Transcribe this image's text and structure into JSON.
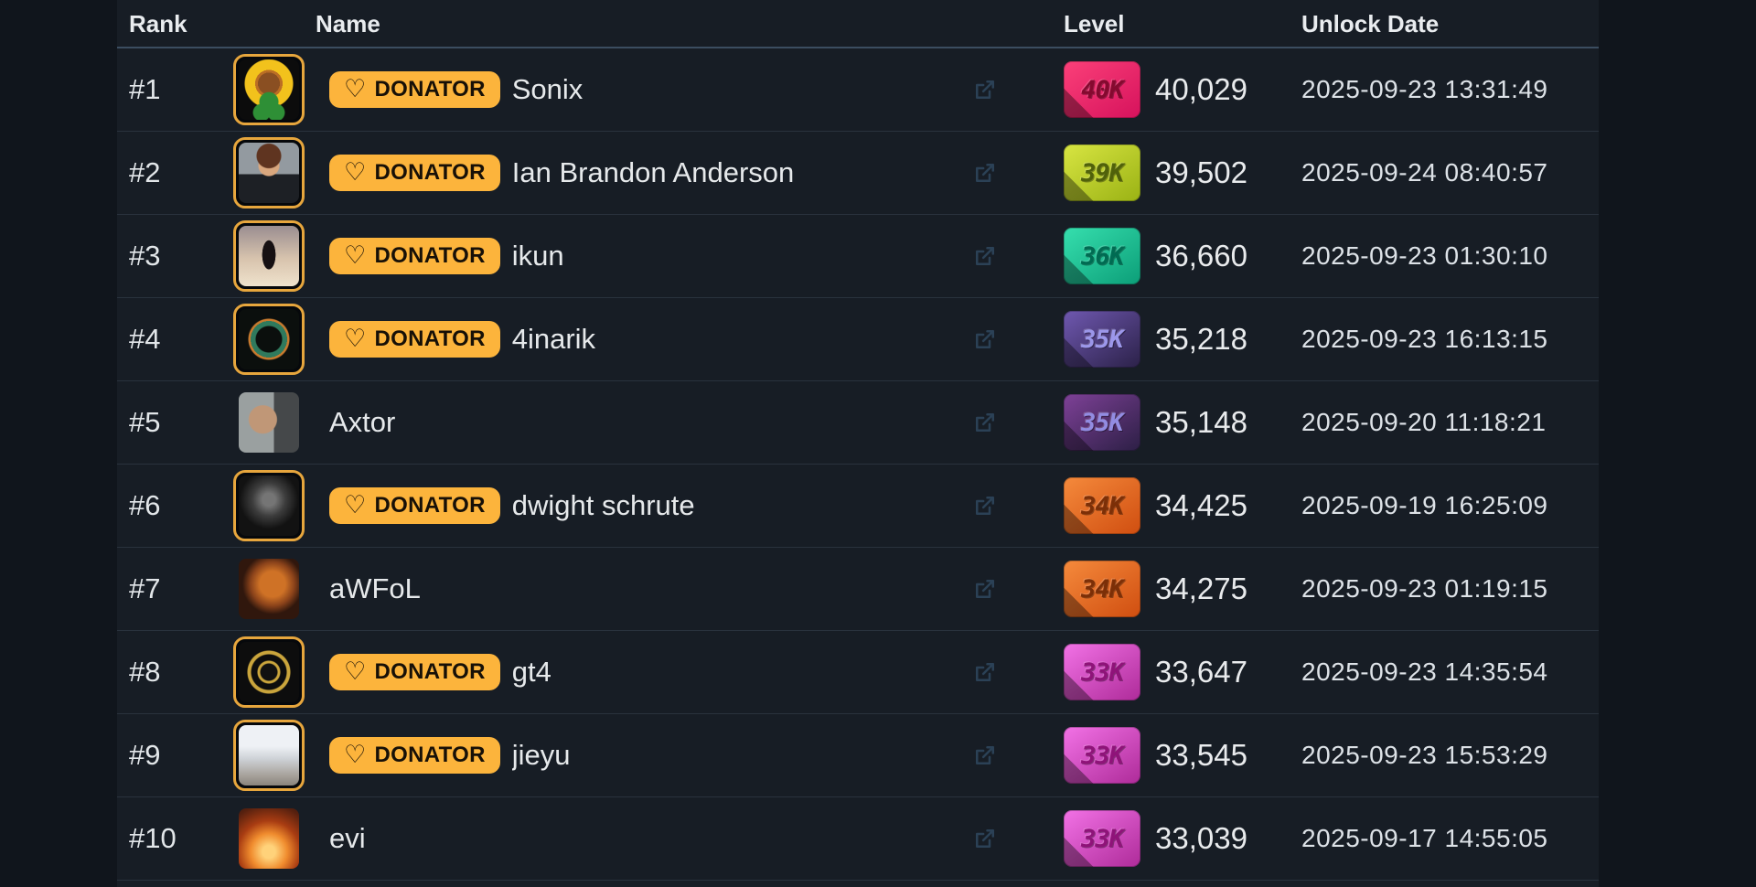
{
  "table": {
    "columns": {
      "rank": "Rank",
      "name": "Name",
      "level": "Level",
      "unlock_date": "Unlock Date"
    },
    "donator_label": "DONATOR",
    "donator_heart": "♡",
    "colors": {
      "donator_badge_bg": "#fcb43c",
      "donator_border": "#e7a63d",
      "header_divider": "#3b4d60",
      "row_divider": "#29323d",
      "background": "#171d25"
    },
    "rows": [
      {
        "rank": "#1",
        "name": "Sonix",
        "donator": true,
        "avatar": "sunflower",
        "badge": {
          "label": "40K",
          "bg1": "#fb4079",
          "bg2": "#d6125c",
          "text": "#85092f"
        },
        "level": "40,029",
        "unlock_date": "2025-09-23 13:31:49"
      },
      {
        "rank": "#2",
        "name": "Ian Brandon Anderson",
        "donator": true,
        "avatar": "suit-man",
        "badge": {
          "label": "39K",
          "bg1": "#d8e542",
          "bg2": "#9ab214",
          "text": "#50610a"
        },
        "level": "39,502",
        "unlock_date": "2025-09-24 08:40:57"
      },
      {
        "rank": "#3",
        "name": "ikun",
        "donator": true,
        "avatar": "silhouette-dancer",
        "badge": {
          "label": "36K",
          "bg1": "#36dfae",
          "bg2": "#0c9e78",
          "text": "#006b52"
        },
        "level": "36,660",
        "unlock_date": "2025-09-23 01:30:10"
      },
      {
        "rank": "#4",
        "name": "4inarik",
        "donator": true,
        "avatar": "ring-logo",
        "badge": {
          "label": "35K",
          "bg1": "#6f58b0",
          "bg2": "#2b2148",
          "text": "#9c97ea"
        },
        "level": "35,218",
        "unlock_date": "2025-09-23 16:13:15"
      },
      {
        "rank": "#5",
        "name": "Axtor",
        "donator": false,
        "avatar": "face-photo",
        "badge": {
          "label": "35K",
          "bg1": "#7e4197",
          "bg2": "#2c1f45",
          "text": "#928ce2"
        },
        "level": "35,148",
        "unlock_date": "2025-09-20 11:18:21"
      },
      {
        "rank": "#6",
        "name": "dwight schrute",
        "donator": true,
        "avatar": "dark-portrait",
        "badge": {
          "label": "34K",
          "bg1": "#f58a3c",
          "bg2": "#d04e10",
          "text": "#7c2f07"
        },
        "level": "34,425",
        "unlock_date": "2025-09-19 16:25:09"
      },
      {
        "rank": "#7",
        "name": "aWFoL",
        "donator": false,
        "avatar": "dragon",
        "badge": {
          "label": "34K",
          "bg1": "#f58a3c",
          "bg2": "#d04e10",
          "text": "#7c2f07"
        },
        "level": "34,275",
        "unlock_date": "2025-09-23 01:19:15"
      },
      {
        "rank": "#8",
        "name": "gt4",
        "donator": true,
        "avatar": "gold-emblem",
        "badge": {
          "label": "33K",
          "bg1": "#f272e6",
          "bg2": "#ae2b99",
          "text": "#8f1379"
        },
        "level": "33,647",
        "unlock_date": "2025-09-23 14:35:54"
      },
      {
        "rank": "#9",
        "name": "jieyu",
        "donator": true,
        "avatar": "misty-landscape",
        "badge": {
          "label": "33K",
          "bg1": "#f272e6",
          "bg2": "#ae2b99",
          "text": "#8f1379"
        },
        "level": "33,545",
        "unlock_date": "2025-09-23 15:53:29"
      },
      {
        "rank": "#10",
        "name": "evi",
        "donator": false,
        "avatar": "fiery-sunset",
        "badge": {
          "label": "33K",
          "bg1": "#f272e6",
          "bg2": "#ae2b99",
          "text": "#8f1379"
        },
        "level": "33,039",
        "unlock_date": "2025-09-17 14:55:05"
      }
    ]
  }
}
